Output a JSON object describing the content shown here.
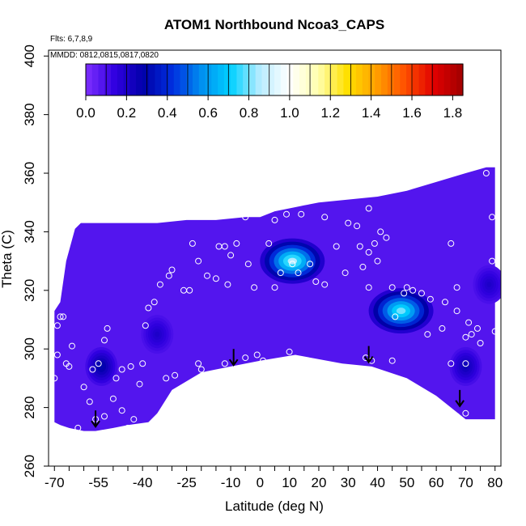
{
  "chart_data": {
    "type": "heatmap",
    "title": "ATOM1 Northbound Ncoa3_CAPS",
    "annotations": [
      "Flts: 6,7,8,9",
      "MMDD: 0812,0815,0817,0820"
    ],
    "xlabel": "Latitude (deg N)",
    "ylabel": "Theta (C)",
    "xlim": [
      -72,
      82
    ],
    "ylim": [
      260,
      402
    ],
    "x_ticks": [
      "-70",
      "-55",
      "-40",
      "-25",
      "-10",
      "0",
      "10",
      "20",
      "30",
      "40",
      "50",
      "60",
      "70",
      "80"
    ],
    "y_ticks": [
      "260",
      "280",
      "300",
      "320",
      "340",
      "360",
      "380",
      "400"
    ],
    "colorbar": {
      "range": [
        0.0,
        1.85
      ],
      "ticks": [
        "0.0",
        "0.2",
        "0.4",
        "0.6",
        "0.8",
        "1.0",
        "1.2",
        "1.4",
        "1.6",
        "1.8"
      ],
      "colors": [
        "#7f2fff",
        "#3000e0",
        "#0000a8",
        "#0030e0",
        "#0090f0",
        "#00d0ff",
        "#b8ecff",
        "#ffffff",
        "#ffffb0",
        "#ffe000",
        "#ffa000",
        "#ff5000",
        "#e00000",
        "#a00000"
      ]
    },
    "background_value": 0.08,
    "blobs": [
      {
        "lat": 11,
        "theta": 330,
        "value": 0.85
      },
      {
        "lat": 48,
        "theta": 313,
        "value": 0.8
      },
      {
        "lat": -54,
        "theta": 294,
        "value": 0.3
      },
      {
        "lat": 70,
        "theta": 294,
        "value": 0.25
      },
      {
        "lat": -35,
        "theta": 305,
        "value": 0.2
      },
      {
        "lat": 78,
        "theta": 322,
        "value": 0.2
      }
    ],
    "sample_points": [
      [
        -69,
        308
      ],
      [
        -68,
        311
      ],
      [
        -67,
        311
      ],
      [
        -69,
        298
      ],
      [
        -70,
        290
      ],
      [
        -66,
        295
      ],
      [
        -64,
        301
      ],
      [
        -65,
        294
      ],
      [
        -57,
        293
      ],
      [
        -55,
        295
      ],
      [
        -53,
        303
      ],
      [
        -52,
        307
      ],
      [
        -49,
        290
      ],
      [
        -47,
        293
      ],
      [
        -44,
        294
      ],
      [
        -50,
        283
      ],
      [
        -47,
        279
      ],
      [
        -43,
        276
      ],
      [
        -45,
        273
      ],
      [
        -41,
        288
      ],
      [
        -39,
        308
      ],
      [
        -38,
        314
      ],
      [
        -36,
        316
      ],
      [
        -34,
        322
      ],
      [
        -31,
        325
      ],
      [
        -30,
        327
      ],
      [
        -26,
        320
      ],
      [
        -24,
        320
      ],
      [
        -23,
        336
      ],
      [
        -21,
        330
      ],
      [
        -18,
        325
      ],
      [
        -15,
        324
      ],
      [
        -14,
        335
      ],
      [
        -12,
        335
      ],
      [
        -10,
        332
      ],
      [
        -8,
        336
      ],
      [
        -11,
        322
      ],
      [
        -5,
        345
      ],
      [
        -4,
        329
      ],
      [
        -2,
        321
      ],
      [
        3,
        336
      ],
      [
        5,
        344
      ],
      [
        5,
        321
      ],
      [
        7,
        326
      ],
      [
        9,
        346
      ],
      [
        11,
        329
      ],
      [
        13,
        326
      ],
      [
        14,
        346
      ],
      [
        17,
        329
      ],
      [
        19,
        323
      ],
      [
        22,
        322
      ],
      [
        22,
        345
      ],
      [
        26,
        335
      ],
      [
        29,
        326
      ],
      [
        30,
        343
      ],
      [
        33,
        342
      ],
      [
        34,
        335
      ],
      [
        35,
        328
      ],
      [
        37,
        333
      ],
      [
        37,
        321
      ],
      [
        37,
        348
      ],
      [
        39,
        336
      ],
      [
        40,
        330
      ],
      [
        41,
        340
      ],
      [
        43,
        338
      ],
      [
        45,
        321
      ],
      [
        46,
        311
      ],
      [
        49,
        319
      ],
      [
        50,
        321
      ],
      [
        52,
        320
      ],
      [
        55,
        319
      ],
      [
        58,
        317
      ],
      [
        57,
        305
      ],
      [
        62,
        307
      ],
      [
        63,
        316
      ],
      [
        65,
        336
      ],
      [
        67,
        321
      ],
      [
        67,
        313
      ],
      [
        70,
        304
      ],
      [
        71,
        309
      ],
      [
        74,
        307
      ],
      [
        72,
        305
      ],
      [
        75,
        302
      ],
      [
        80,
        306
      ],
      [
        79,
        330
      ],
      [
        79,
        345
      ],
      [
        77,
        360
      ],
      [
        65,
        295
      ],
      [
        64,
        276
      ],
      [
        67,
        277
      ],
      [
        70,
        278
      ],
      [
        70,
        295
      ],
      [
        36,
        297
      ],
      [
        38,
        296
      ],
      [
        45,
        296
      ],
      [
        -29,
        291
      ],
      [
        -32,
        290
      ],
      [
        -40,
        295
      ],
      [
        -21,
        295
      ],
      [
        -5,
        297
      ],
      [
        -20,
        293
      ],
      [
        -12,
        295
      ],
      [
        -1,
        298
      ],
      [
        1,
        296
      ],
      [
        10,
        299
      ],
      [
        -62,
        273
      ],
      [
        -56,
        276
      ],
      [
        -53,
        277
      ],
      [
        -60,
        287
      ],
      [
        -58,
        282
      ]
    ],
    "arrows": [
      {
        "lat": -56,
        "theta": 279
      },
      {
        "lat": -9,
        "theta": 300
      },
      {
        "lat": 37,
        "theta": 301
      },
      {
        "lat": 68,
        "theta": 286
      }
    ]
  }
}
